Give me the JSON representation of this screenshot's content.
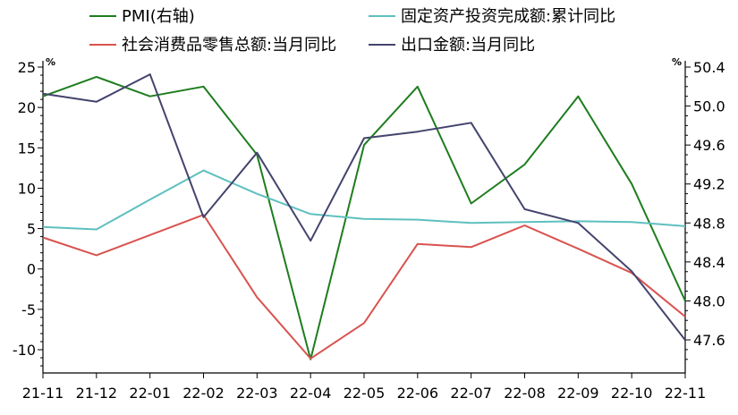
{
  "chart_data": {
    "type": "line",
    "categories": [
      "21-11",
      "21-12",
      "22-01",
      "22-02",
      "22-03",
      "22-04",
      "22-05",
      "22-06",
      "22-07",
      "22-08",
      "22-09",
      "22-10",
      "22-11"
    ],
    "left_axis": {
      "unit": "%",
      "ylim": [
        -12,
        25
      ],
      "ticks": [
        25,
        20,
        15,
        10,
        5,
        0,
        -5,
        -10
      ]
    },
    "right_axis": {
      "unit": "%",
      "ylim": [
        47.4,
        50.4
      ],
      "ticks": [
        50.4,
        50.0,
        49.6,
        49.2,
        48.8,
        48.4,
        48.0,
        47.6
      ]
    },
    "grid": false,
    "legend_position": "top",
    "series": [
      {
        "name": "PMI(右轴)",
        "axis": "right",
        "color": "#1e7d1e",
        "values": [
          50.1,
          50.3,
          50.1,
          50.2,
          49.5,
          47.4,
          49.6,
          50.2,
          49.0,
          49.4,
          50.1,
          49.2,
          48.0
        ]
      },
      {
        "name": "固定资产投资完成额:累计同比",
        "axis": "left",
        "color": "#5fbfbf",
        "values": [
          5.2,
          4.9,
          8.6,
          12.2,
          9.3,
          6.8,
          6.2,
          6.1,
          5.7,
          5.8,
          5.9,
          5.8,
          5.3
        ]
      },
      {
        "name": "社会消费品零售总额:当月同比",
        "axis": "left",
        "color": "#d9534f",
        "values": [
          3.9,
          1.7,
          4.2,
          6.7,
          -3.5,
          -11.1,
          -6.7,
          3.1,
          2.7,
          5.4,
          2.5,
          -0.5,
          -5.9
        ]
      },
      {
        "name": "出口金额:当月同比",
        "axis": "left",
        "color": "#44446e",
        "values": [
          21.7,
          20.7,
          24.1,
          6.4,
          14.4,
          3.5,
          16.2,
          17.0,
          18.1,
          7.4,
          5.7,
          -0.3,
          -8.8
        ]
      }
    ]
  }
}
